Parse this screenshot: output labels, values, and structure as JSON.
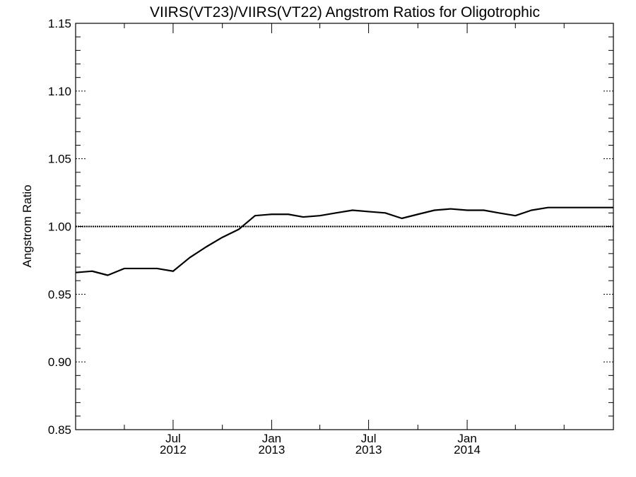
{
  "chart_data": {
    "type": "line",
    "title": "VIIRS(VT23)/VIIRS(VT22)  Angstrom Ratios for Oligotrophic",
    "xlabel": "",
    "ylabel": "Angstrom Ratio",
    "ylim": [
      0.85,
      1.15
    ],
    "xlim": [
      "2012-01-01",
      "2014-10-01"
    ],
    "grid": false,
    "reference_line": 1.0,
    "y_ticks": [
      {
        "value": 0.85,
        "label": "0.85"
      },
      {
        "value": 0.9,
        "label": "0.90"
      },
      {
        "value": 0.95,
        "label": "0.95"
      },
      {
        "value": 1.0,
        "label": "1.00"
      },
      {
        "value": 1.05,
        "label": "1.05"
      },
      {
        "value": 1.1,
        "label": "1.10"
      },
      {
        "value": 1.15,
        "label": "1.15"
      }
    ],
    "x_ticks": [
      {
        "date": "2012-07-01",
        "month": "Jul",
        "year": "2012"
      },
      {
        "date": "2013-01-01",
        "month": "Jan",
        "year": "2013"
      },
      {
        "date": "2013-07-01",
        "month": "Jul",
        "year": "2013"
      },
      {
        "date": "2014-01-01",
        "month": "Jan",
        "year": "2014"
      }
    ],
    "series": [
      {
        "x": [
          "2012-01-01",
          "2012-02-01",
          "2012-03-01",
          "2012-04-01",
          "2012-05-01",
          "2012-06-01",
          "2012-07-01",
          "2012-08-01",
          "2012-09-01",
          "2012-10-01",
          "2012-11-01",
          "2012-12-01",
          "2013-01-01",
          "2013-02-01",
          "2013-03-01",
          "2013-04-01",
          "2013-05-01",
          "2013-06-01",
          "2013-07-01",
          "2013-08-01",
          "2013-09-01",
          "2013-10-01",
          "2013-11-01",
          "2013-12-01",
          "2014-01-01",
          "2014-02-01",
          "2014-03-01",
          "2014-04-01",
          "2014-05-01",
          "2014-06-01",
          "2014-07-01",
          "2014-08-01",
          "2014-09-01",
          "2014-10-01"
        ],
        "values": [
          0.966,
          0.967,
          0.964,
          0.969,
          0.969,
          0.969,
          0.967,
          0.977,
          0.985,
          0.992,
          0.998,
          1.008,
          1.009,
          1.009,
          1.007,
          1.008,
          1.01,
          1.012,
          1.011,
          1.01,
          1.006,
          1.009,
          1.012,
          1.013,
          1.012,
          1.012,
          1.01,
          1.008,
          1.012,
          1.014,
          1.014,
          1.014,
          1.014,
          1.014
        ]
      }
    ]
  }
}
